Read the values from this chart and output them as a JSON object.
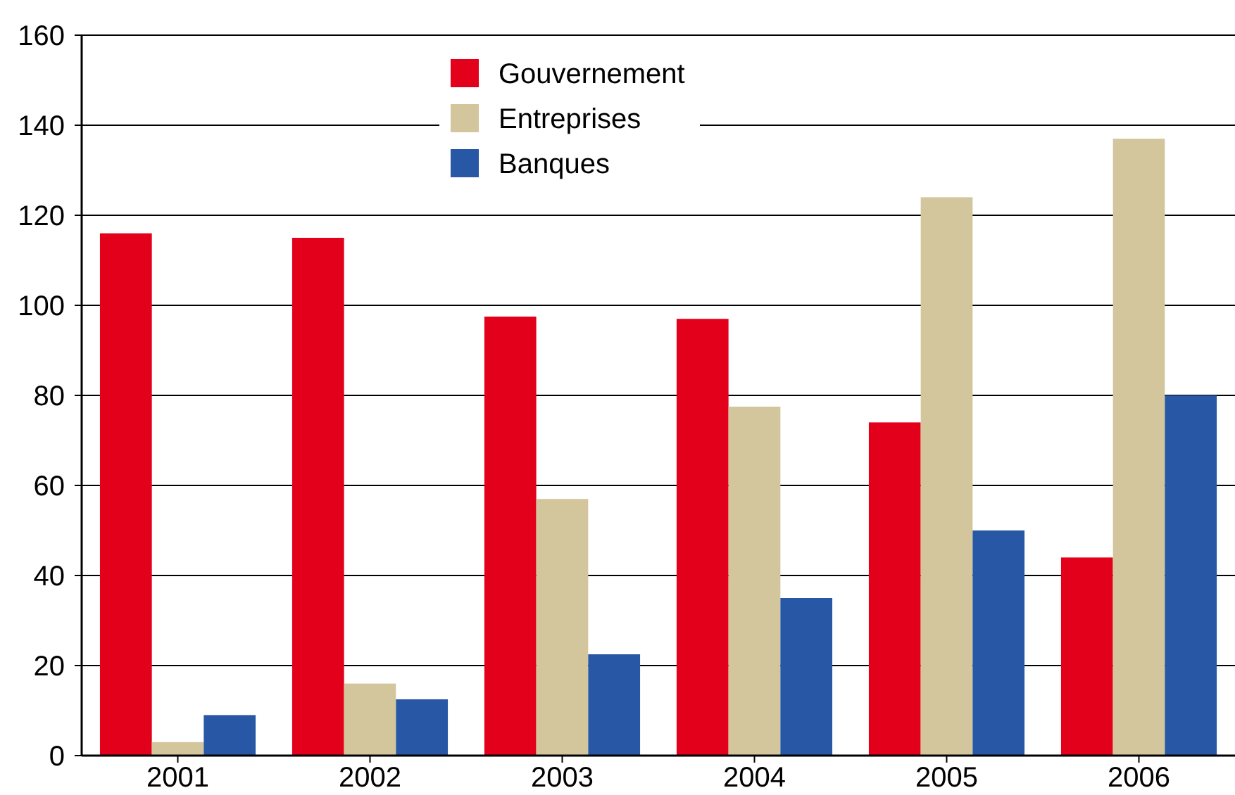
{
  "chart_data": {
    "type": "bar",
    "categories": [
      "2001",
      "2002",
      "2003",
      "2004",
      "2005",
      "2006"
    ],
    "series": [
      {
        "name": "Gouvernement",
        "color": "#e2001a",
        "values": [
          116,
          115,
          97.5,
          97,
          74,
          44
        ]
      },
      {
        "name": "Entreprises",
        "color": "#d3c69c",
        "values": [
          3,
          16,
          57,
          77.5,
          124,
          137
        ]
      },
      {
        "name": "Banques",
        "color": "#2857a5",
        "values": [
          9,
          12.5,
          22.5,
          35,
          50,
          80
        ]
      }
    ],
    "ylim": [
      0,
      160
    ],
    "yticks": [
      0,
      20,
      40,
      60,
      80,
      100,
      120,
      140,
      160
    ],
    "grid": "y",
    "legend": "top"
  }
}
